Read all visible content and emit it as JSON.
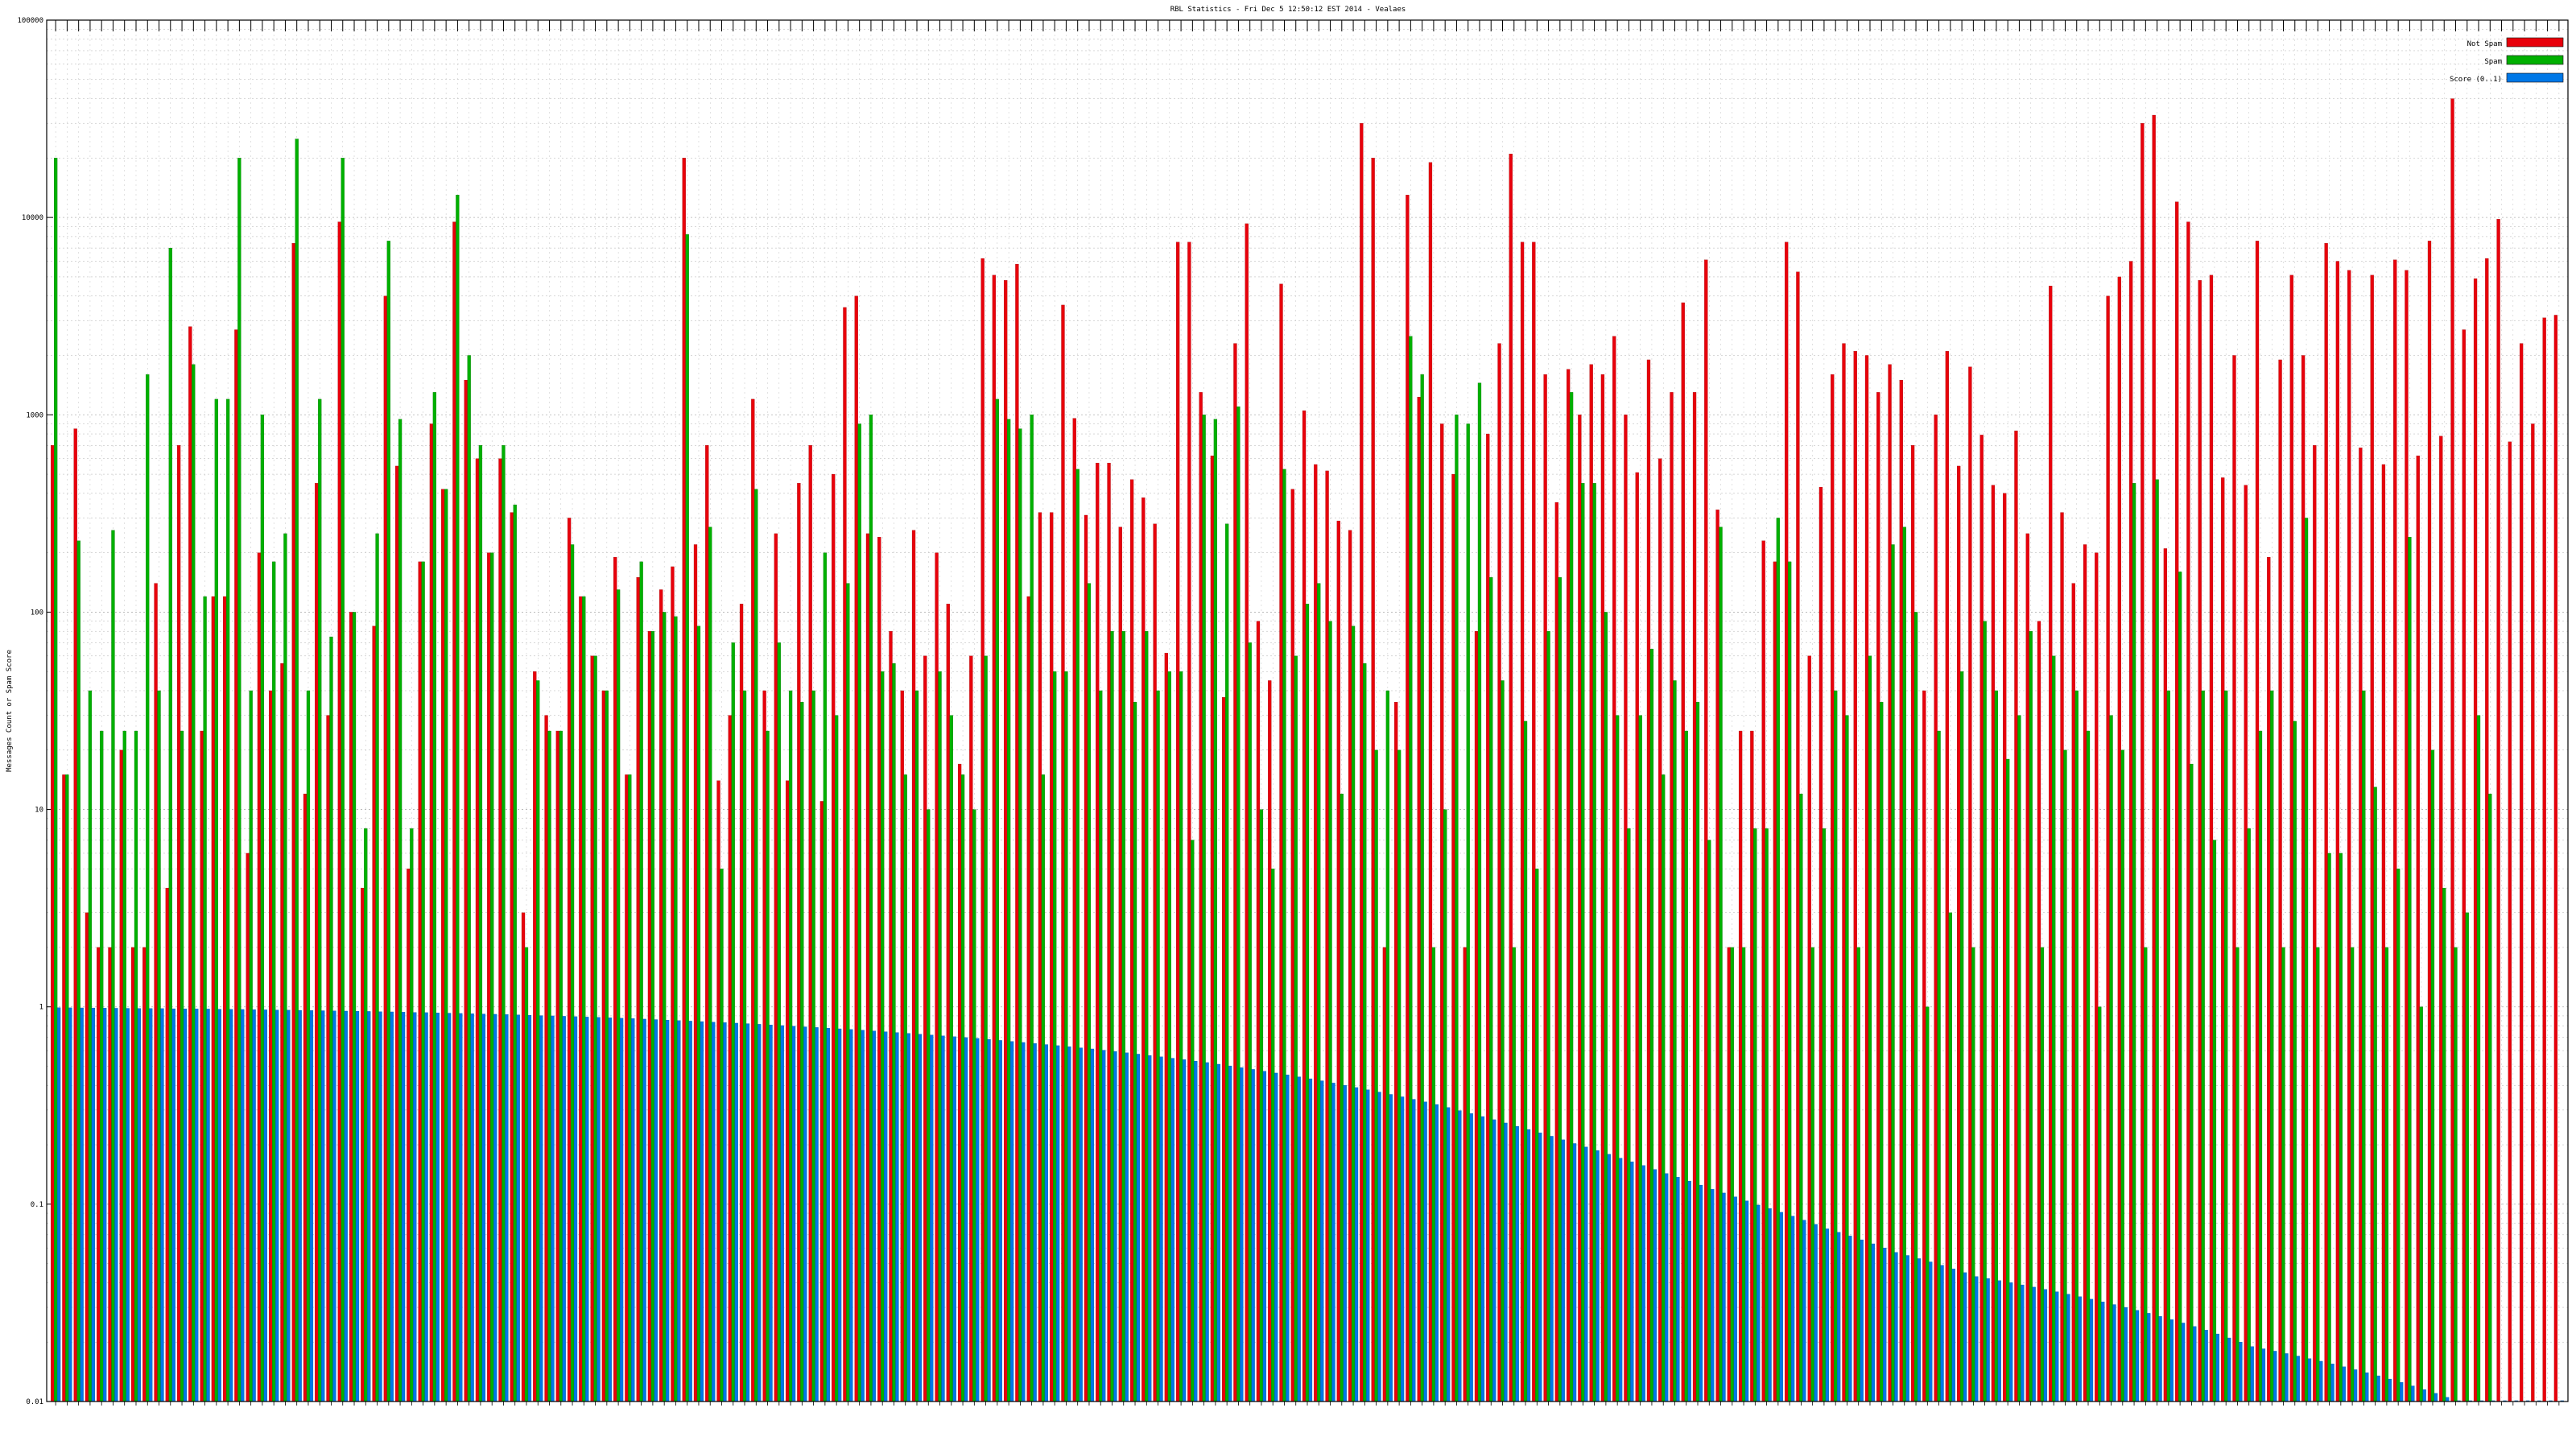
{
  "chart_data": {
    "type": "bar",
    "title": "RBL Statistics - Fri Dec  5 12:50:12 EST 2014 - Vealaes",
    "ylabel": "Messages Count or Spam Score",
    "xlabel": "",
    "yscale": "log",
    "ylim": [
      0.01,
      100000
    ],
    "yticks": [
      "0.01",
      "0.1",
      "1",
      "10",
      "100",
      "1000",
      "10000",
      "100000"
    ],
    "grid": true,
    "legend_position": "top-right",
    "colors": {
      "not_spam": "#e8000b",
      "spam": "#00b000",
      "score": "#0078e7"
    },
    "series": [
      {
        "name": "Not Spam",
        "color": "#e8000b",
        "values": [
          700,
          15,
          850,
          3,
          2,
          2,
          20,
          2,
          2,
          140,
          4,
          700,
          2800,
          25,
          120,
          120,
          2700,
          6,
          200,
          40,
          55,
          7400,
          12,
          450,
          30,
          9500,
          100,
          4,
          85,
          4000,
          550,
          5,
          180,
          900,
          420,
          9500,
          1500,
          600,
          200,
          600,
          320,
          3,
          50,
          30,
          25,
          300,
          120,
          60,
          40,
          190,
          15,
          150,
          80,
          130,
          170,
          20000,
          220,
          700,
          14,
          30,
          110,
          1200,
          40,
          250,
          14,
          450,
          700,
          11,
          500,
          3500,
          4000,
          250,
          240,
          80,
          40,
          260,
          60,
          200,
          110,
          17,
          60,
          6200,
          5100,
          4800,
          5800,
          120,
          320,
          320,
          3600,
          960,
          310,
          570,
          570,
          270,
          470,
          380,
          280,
          62,
          7500,
          7500,
          1300,
          620,
          37,
          2300,
          9300,
          90,
          45,
          4600,
          420,
          1050,
          560,
          520,
          290,
          260,
          30000,
          20000,
          2,
          35,
          13000,
          1230,
          19000,
          900,
          500,
          2,
          80,
          800,
          2300,
          21000,
          7500,
          7500,
          1600,
          360,
          1700,
          1000,
          1800,
          1600,
          2500,
          1000,
          510,
          1900,
          600,
          1300,
          3700,
          1300,
          6100,
          330,
          2,
          25,
          25,
          230,
          180,
          7500,
          5300,
          60,
          430,
          1600,
          2300,
          2100,
          2000,
          1300,
          1800,
          1500,
          700,
          40,
          1000,
          2100,
          550,
          1750,
          790,
          440,
          400,
          830,
          250,
          90,
          4500,
          320,
          140,
          220,
          200,
          4000,
          5000,
          6000,
          30000,
          33000,
          210,
          12000,
          9500,
          4800,
          5100,
          480,
          2000,
          440,
          7600,
          190,
          1900,
          5100,
          2000,
          700,
          7400,
          6000,
          5400,
          680,
          5100,
          560,
          6100,
          5400,
          620,
          7600,
          780,
          40000,
          2700,
          4900,
          6200,
          9800,
          730,
          2300,
          900,
          3100,
          3200
        ]
      },
      {
        "name": "Spam",
        "color": "#00b000",
        "values": [
          20000,
          15,
          230,
          40,
          25,
          260,
          25,
          25,
          1600,
          40,
          7000,
          25,
          1800,
          120,
          1200,
          1200,
          20000,
          40,
          1000,
          180,
          250,
          25000,
          40,
          1200,
          75,
          20000,
          100,
          8,
          250,
          7600,
          950,
          8,
          180,
          1300,
          420,
          13000,
          2000,
          700,
          200,
          700,
          350,
          2,
          45,
          25,
          25,
          220,
          120,
          60,
          40,
          130,
          15,
          180,
          80,
          100,
          95,
          8200,
          85,
          270,
          5,
          70,
          40,
          420,
          25,
          70,
          40,
          35,
          40,
          200,
          30,
          140,
          900,
          1000,
          50,
          55,
          15,
          40,
          10,
          50,
          30,
          15,
          10,
          60,
          1200,
          950,
          850,
          1000,
          15,
          50,
          50,
          530,
          140,
          40,
          80,
          80,
          35,
          80,
          40,
          50,
          50,
          7,
          1000,
          950,
          280,
          1100,
          70,
          10,
          5,
          530,
          60,
          110,
          140,
          90,
          12,
          85,
          55,
          20,
          40,
          20,
          2500,
          1600,
          2,
          10,
          1000,
          900,
          1450,
          150,
          45,
          2,
          28,
          5,
          80,
          150,
          1300,
          450,
          450,
          100,
          30,
          8,
          30,
          65,
          15,
          45,
          25,
          35,
          7,
          270,
          2,
          2,
          8,
          8,
          300,
          180,
          12,
          2,
          8,
          40,
          30,
          2,
          60,
          35,
          220,
          270,
          100,
          1,
          25,
          3,
          50,
          2,
          90,
          40,
          18,
          30,
          80,
          2,
          60,
          20,
          40,
          25,
          1,
          30,
          20,
          450,
          2,
          470,
          40,
          160,
          17,
          40,
          7,
          40,
          2,
          8,
          25,
          40,
          2,
          28,
          300,
          2,
          6,
          6,
          2,
          40,
          13,
          2,
          5,
          240,
          1,
          20,
          4,
          2,
          3,
          30,
          12
        ]
      },
      {
        "name": "Score (0..1)",
        "color": "#0078e7",
        "values": [
          0.99,
          0.989,
          0.988,
          0.987,
          0.985,
          0.984,
          0.983,
          0.982,
          0.981,
          0.98,
          0.978,
          0.977,
          0.976,
          0.975,
          0.973,
          0.971,
          0.97,
          0.968,
          0.966,
          0.964,
          0.962,
          0.96,
          0.958,
          0.956,
          0.954,
          0.952,
          0.95,
          0.948,
          0.945,
          0.943,
          0.94,
          0.937,
          0.935,
          0.932,
          0.929,
          0.926,
          0.923,
          0.92,
          0.917,
          0.914,
          0.911,
          0.907,
          0.903,
          0.9,
          0.896,
          0.892,
          0.888,
          0.884,
          0.88,
          0.876,
          0.872,
          0.867,
          0.862,
          0.857,
          0.852,
          0.847,
          0.842,
          0.837,
          0.832,
          0.827,
          0.822,
          0.816,
          0.81,
          0.804,
          0.798,
          0.792,
          0.786,
          0.78,
          0.774,
          0.768,
          0.762,
          0.755,
          0.748,
          0.741,
          0.734,
          0.727,
          0.72,
          0.713,
          0.706,
          0.699,
          0.692,
          0.684,
          0.676,
          0.668,
          0.66,
          0.652,
          0.644,
          0.636,
          0.628,
          0.62,
          0.612,
          0.603,
          0.594,
          0.585,
          0.576,
          0.567,
          0.558,
          0.549,
          0.54,
          0.531,
          0.522,
          0.512,
          0.502,
          0.492,
          0.482,
          0.472,
          0.462,
          0.452,
          0.442,
          0.432,
          0.422,
          0.411,
          0.4,
          0.39,
          0.38,
          0.37,
          0.36,
          0.35,
          0.34,
          0.33,
          0.32,
          0.309,
          0.298,
          0.288,
          0.278,
          0.268,
          0.258,
          0.248,
          0.239,
          0.23,
          0.221,
          0.212,
          0.203,
          0.195,
          0.187,
          0.179,
          0.171,
          0.164,
          0.157,
          0.15,
          0.143,
          0.137,
          0.131,
          0.125,
          0.119,
          0.114,
          0.109,
          0.104,
          0.099,
          0.095,
          0.091,
          0.087,
          0.083,
          0.079,
          0.075,
          0.072,
          0.069,
          0.066,
          0.063,
          0.06,
          0.057,
          0.055,
          0.053,
          0.051,
          0.049,
          0.047,
          0.045,
          0.043,
          0.042,
          0.041,
          0.04,
          0.039,
          0.038,
          0.037,
          0.036,
          0.035,
          0.034,
          0.033,
          0.032,
          0.031,
          0.03,
          0.029,
          0.028,
          0.027,
          0.026,
          0.025,
          0.024,
          0.023,
          0.022,
          0.021,
          0.02,
          0.019,
          0.0185,
          0.018,
          0.0175,
          0.017,
          0.0165,
          0.016,
          0.0155,
          0.015,
          0.0145,
          0.014,
          0.0135,
          0.013,
          0.0125,
          0.012,
          0.0115,
          0.011,
          0.0105,
          0.0101,
          0.0101,
          0.0101,
          0.0101,
          0.0101,
          0.0101,
          0.0101,
          0.0101,
          0.0101,
          0.0101,
          0.0101,
          0.0101
        ]
      }
    ]
  }
}
